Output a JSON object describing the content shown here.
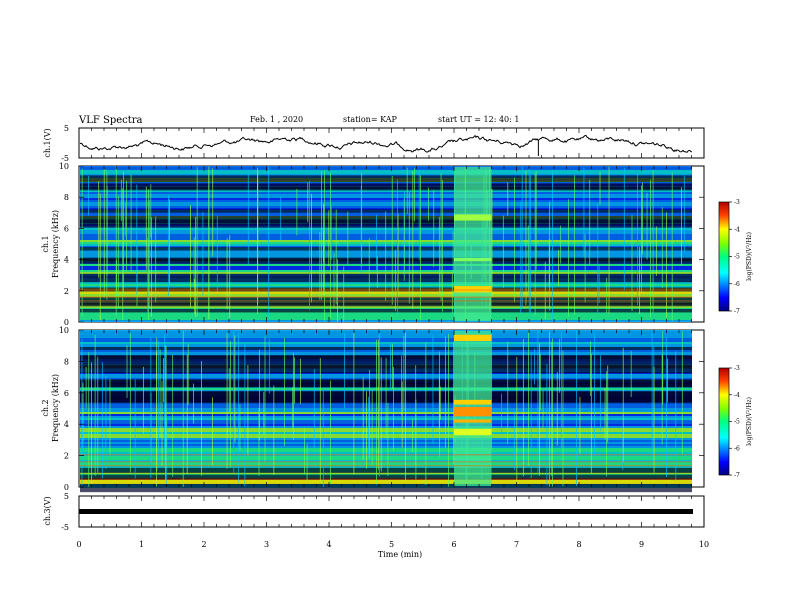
{
  "header": {
    "title": "VLF Spectra",
    "date": "Feb. 1 , 2020",
    "station": "station= KAP",
    "start_time": "start UT =   12: 40: 1"
  },
  "chart_data": {
    "type": "heatmap",
    "x": {
      "label": "Time (min)",
      "range": [
        0,
        10
      ],
      "ticks": [
        "0",
        "1",
        "2",
        "3",
        "4",
        "5",
        "6",
        "7",
        "8",
        "9",
        "10"
      ]
    },
    "panels": [
      {
        "id": "ch1_wave",
        "type": "line",
        "ylabel": "ch.1(V)",
        "ylim": [
          -5,
          5
        ],
        "yticks": [
          "5",
          "-5"
        ],
        "series": [
          {
            "values": []
          }
        ]
      },
      {
        "id": "ch1_spec",
        "type": "heatmap",
        "ylabel_top": "ch.1",
        "ylabel": "Frequency (kHz)",
        "ylim": [
          0,
          10
        ],
        "yticks": [
          "0",
          "2",
          "4",
          "6",
          "8",
          "10"
        ],
        "colorbar": {
          "label": "log(PSD)(V²/Hz)",
          "range": [
            -7,
            -3
          ],
          "ticks": [
            "-3",
            "-4",
            "-5",
            "-6",
            "-7"
          ]
        }
      },
      {
        "id": "ch2_spec",
        "type": "heatmap",
        "ylabel_top": "ch.2",
        "ylabel": "Frequency (kHz)",
        "ylim": [
          0,
          10
        ],
        "yticks": [
          "0",
          "2",
          "4",
          "6",
          "8",
          "10"
        ],
        "colorbar": {
          "label": "log(PSD)(V²/Hz)",
          "range": [
            -7,
            -3
          ],
          "ticks": [
            "-3",
            "-4",
            "-5",
            "-6",
            "-7"
          ]
        }
      },
      {
        "id": "ch3_wave",
        "type": "line",
        "ylabel": "ch.3(V)",
        "ylim": [
          -5,
          5
        ],
        "yticks": [
          "5",
          "-5"
        ],
        "series": [
          {
            "values": []
          }
        ]
      }
    ],
    "grid": false
  },
  "colors": {
    "colormap": [
      "#00007f",
      "#0000ff",
      "#00ffff",
      "#00ff7f",
      "#7fff00",
      "#ffff00",
      "#ff7f00",
      "#ff0000",
      "#7f0000"
    ]
  }
}
